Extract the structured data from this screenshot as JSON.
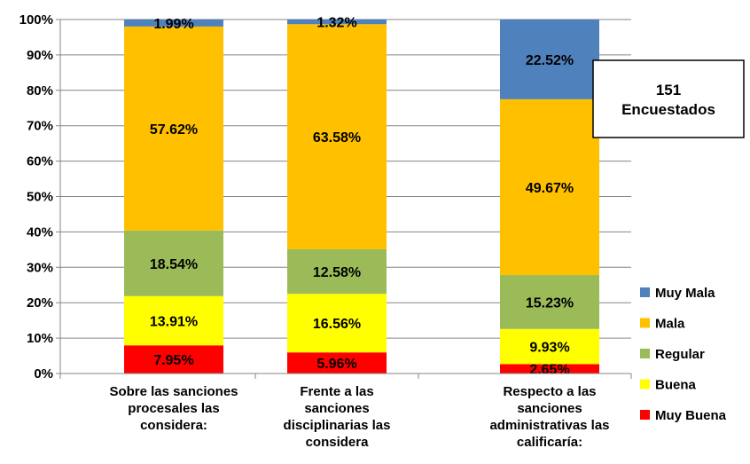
{
  "chart_data": {
    "type": "bar",
    "stacked": true,
    "percent": true,
    "categories": [
      [
        "Sobre las sanciones",
        "procesales las",
        "considera:"
      ],
      [
        "Frente a las",
        "sanciones",
        "disciplinarias las",
        "considera"
      ],
      [
        "Respecto a las",
        "sanciones",
        "administrativas las",
        "calificaría:"
      ]
    ],
    "series": [
      {
        "name": "Muy Buena",
        "color": "#ff0000",
        "values": [
          7.95,
          5.96,
          2.65
        ],
        "labels": [
          "7.95%",
          "5.96%",
          "2.65%"
        ]
      },
      {
        "name": "Buena",
        "color": "#ffff00",
        "values": [
          13.91,
          16.56,
          9.93
        ],
        "labels": [
          "13.91%",
          "16.56%",
          "9.93%"
        ]
      },
      {
        "name": "Regular",
        "color": "#9bbb59",
        "values": [
          18.54,
          12.58,
          15.23
        ],
        "labels": [
          "18.54%",
          "12.58%",
          "15.23%"
        ]
      },
      {
        "name": "Mala",
        "color": "#ffc000",
        "values": [
          57.62,
          63.58,
          49.67
        ],
        "labels": [
          "57.62%",
          "63.58%",
          "49.67%"
        ]
      },
      {
        "name": "Muy Mala",
        "color": "#4f81bd",
        "values": [
          1.99,
          1.32,
          22.52
        ],
        "labels": [
          "1.99%",
          "1.32%",
          "22.52%"
        ]
      }
    ],
    "ylim": [
      0,
      100
    ],
    "yticks": [
      "0%",
      "10%",
      "20%",
      "30%",
      "40%",
      "50%",
      "60%",
      "70%",
      "80%",
      "90%",
      "100%"
    ],
    "grid": true,
    "legend": "right",
    "legend_order": [
      "Muy Mala",
      "Mala",
      "Regular",
      "Buena",
      "Muy Buena"
    ],
    "annotation": [
      "151",
      "Encuestados"
    ]
  }
}
